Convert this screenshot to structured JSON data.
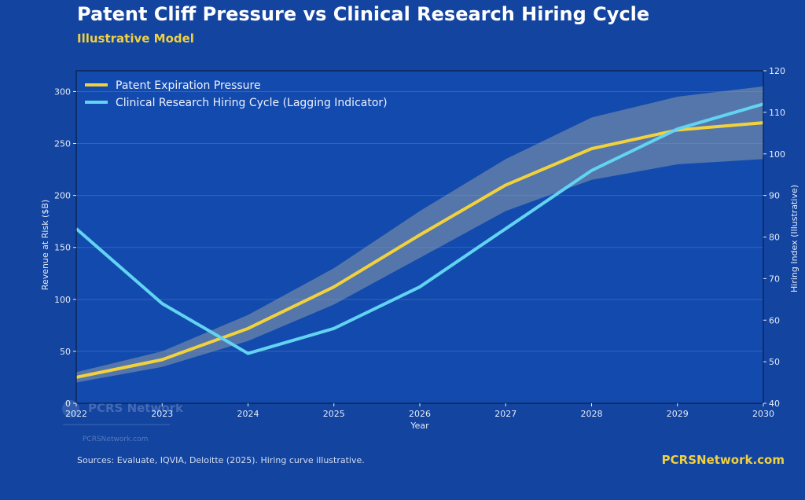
{
  "header": {
    "title": "Patent Cliff Pressure vs Clinical Research Hiring Cycle",
    "subtitle": "Illustrative Model"
  },
  "footer": {
    "sources": "Sources: Evaluate, IQVIA, Deloitte (2025). Hiring curve illustrative.",
    "brand": "PCRSNetwork.com"
  },
  "watermark": {
    "name": "PCRS Network",
    "url": "PCRSNetwork.com"
  },
  "colors": {
    "background": "#1244a0",
    "plot_background": "#134aae",
    "patent_line": "#f2d23c",
    "hiring_line": "#62d4f2",
    "band_fill": "#8a9aa8",
    "accent": "#f0d040"
  },
  "chart_data": {
    "type": "line",
    "title": "Patent Cliff Pressure vs Clinical Research Hiring Cycle",
    "subtitle": "Illustrative Model",
    "xlabel": "Year",
    "ylabel": "Revenue at Risk ($B)",
    "ylabel_right": "Hiring Index (Illustrative)",
    "x": [
      2022,
      2023,
      2024,
      2025,
      2026,
      2027,
      2028,
      2029,
      2030
    ],
    "xlim": [
      2022,
      2030
    ],
    "ylim": [
      0,
      320
    ],
    "ylim_right": [
      40,
      120
    ],
    "yticks": [
      0,
      50,
      100,
      150,
      200,
      250,
      300
    ],
    "yticks_right": [
      40,
      50,
      60,
      70,
      80,
      90,
      100,
      110,
      120
    ],
    "grid": true,
    "legend_position": "top-left",
    "series": [
      {
        "name": "Patent Expiration Pressure",
        "axis": "left",
        "values": [
          25,
          42,
          72,
          112,
          162,
          210,
          245,
          263,
          270
        ],
        "band_lower": [
          20,
          35,
          60,
          95,
          140,
          185,
          215,
          230,
          235
        ],
        "band_upper": [
          30,
          50,
          85,
          130,
          185,
          235,
          275,
          295,
          305
        ]
      },
      {
        "name": "Clinical Research Hiring Cycle (Lagging Indicator)",
        "axis": "right",
        "values": [
          82,
          64,
          52,
          58,
          68,
          82,
          96,
          106,
          112
        ]
      }
    ]
  }
}
